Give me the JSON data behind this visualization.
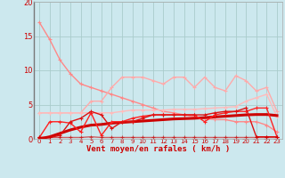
{
  "background_color": "#cce8ee",
  "grid_color": "#aacccc",
  "x_labels": [
    "0",
    "1",
    "2",
    "3",
    "4",
    "5",
    "6",
    "7",
    "8",
    "9",
    "10",
    "11",
    "12",
    "13",
    "14",
    "15",
    "16",
    "17",
    "18",
    "19",
    "20",
    "21",
    "22",
    "23"
  ],
  "xlabel": "Vent moyen/en rafales ( km/h )",
  "ylim": [
    0,
    20
  ],
  "yticks": [
    0,
    5,
    10,
    15,
    20
  ],
  "series": [
    {
      "color": "#ff8888",
      "alpha": 1.0,
      "linewidth": 1.0,
      "marker": "+",
      "markersize": 3,
      "y": [
        17.0,
        14.5,
        11.5,
        9.5,
        8.0,
        7.5,
        7.0,
        6.5,
        6.0,
        5.5,
        5.0,
        4.5,
        4.0,
        3.8,
        3.5,
        3.2,
        3.0,
        2.8,
        2.8,
        2.5,
        2.5,
        2.5,
        2.0,
        1.0
      ]
    },
    {
      "color": "#ffaaaa",
      "alpha": 1.0,
      "linewidth": 1.0,
      "marker": "+",
      "markersize": 3,
      "y": [
        3.8,
        3.8,
        3.8,
        3.8,
        3.8,
        5.5,
        5.5,
        7.5,
        9.0,
        9.0,
        9.0,
        8.5,
        8.0,
        9.0,
        9.0,
        7.5,
        9.0,
        7.5,
        7.0,
        9.2,
        8.5,
        7.0,
        7.5,
        4.0
      ]
    },
    {
      "color": "#ffbbbb",
      "alpha": 1.0,
      "linewidth": 1.0,
      "marker": "+",
      "markersize": 3,
      "y": [
        3.8,
        3.8,
        3.8,
        3.8,
        3.8,
        3.8,
        3.8,
        3.8,
        4.0,
        4.2,
        4.2,
        4.2,
        4.2,
        4.3,
        4.3,
        4.3,
        4.4,
        4.5,
        4.6,
        4.7,
        5.5,
        6.0,
        6.5,
        3.2
      ]
    },
    {
      "color": "#cc0000",
      "alpha": 1.0,
      "linewidth": 2.2,
      "marker": null,
      "markersize": 0,
      "y": [
        0.0,
        0.3,
        0.8,
        1.3,
        1.7,
        2.0,
        2.1,
        2.3,
        2.4,
        2.5,
        2.6,
        2.7,
        2.8,
        2.9,
        2.95,
        3.0,
        3.1,
        3.2,
        3.3,
        3.4,
        3.5,
        3.55,
        3.55,
        3.4
      ]
    },
    {
      "color": "#ff2222",
      "alpha": 1.0,
      "linewidth": 1.0,
      "marker": "+",
      "markersize": 3,
      "y": [
        0.2,
        2.5,
        2.5,
        2.3,
        1.0,
        3.8,
        0.5,
        2.5,
        2.5,
        3.0,
        3.3,
        3.5,
        3.5,
        3.5,
        3.5,
        3.5,
        2.5,
        3.5,
        3.8,
        4.0,
        4.0,
        4.5,
        4.5,
        0.3
      ]
    },
    {
      "color": "#dd1111",
      "alpha": 1.0,
      "linewidth": 1.0,
      "marker": "+",
      "markersize": 3,
      "y": [
        0.2,
        0.2,
        0.5,
        2.5,
        3.0,
        4.0,
        3.5,
        1.5,
        2.5,
        2.5,
        3.0,
        3.5,
        3.5,
        3.5,
        3.5,
        3.5,
        3.5,
        3.8,
        4.0,
        4.0,
        4.5,
        0.3,
        0.3,
        0.3
      ]
    },
    {
      "color": "#cc0000",
      "alpha": 0.6,
      "linewidth": 1.0,
      "marker": "+",
      "markersize": 3,
      "y": [
        0.2,
        0.2,
        0.2,
        0.2,
        0.2,
        0.3,
        0.2,
        0.2,
        0.2,
        0.2,
        0.2,
        0.2,
        0.2,
        0.2,
        0.2,
        0.2,
        0.2,
        0.2,
        0.2,
        0.2,
        0.2,
        0.2,
        0.2,
        0.2
      ]
    }
  ]
}
